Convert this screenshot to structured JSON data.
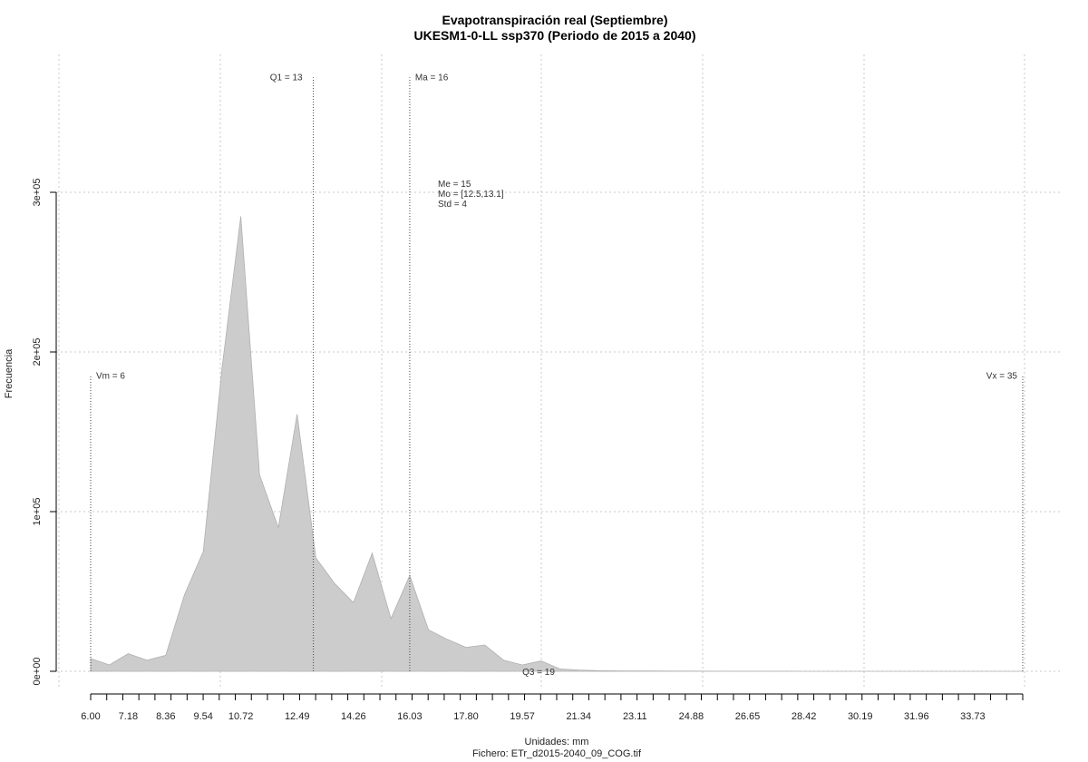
{
  "chart_data": {
    "type": "area",
    "title": "Evapotranspiración real (Septiembre)",
    "subtitle": "UKESM1-0-LL ssp370 (Periodo de 2015 a 2040)",
    "xlabel": "Unidades: mm",
    "caption": "Fichero: ETr_d2015-2040_09_COG.tif",
    "ylabel": "Frecuencia",
    "xlim": [
      6.0,
      35.3
    ],
    "ylim": [
      0,
      300000
    ],
    "x_tick_labels": [
      "6.00",
      "7.18",
      "8.36",
      "9.54",
      "10.72",
      "12.49",
      "14.26",
      "16.03",
      "17.80",
      "19.57",
      "21.34",
      "23.11",
      "24.88",
      "26.65",
      "28.42",
      "30.19",
      "31.96",
      "33.73"
    ],
    "y_ticks": [
      0,
      100000,
      200000,
      300000
    ],
    "y_tick_labels": [
      "0e+00",
      "1e+05",
      "2e+05",
      "3e+05"
    ],
    "grid": true,
    "series": [
      {
        "x": [
          6.0,
          6.59,
          7.18,
          7.77,
          8.36,
          8.95,
          9.54,
          10.13,
          10.72,
          11.31,
          11.9,
          12.49,
          13.08,
          13.67,
          14.26,
          14.85,
          15.44,
          16.03,
          16.62,
          17.21,
          17.8,
          18.39,
          18.98,
          19.57,
          20.16,
          20.75,
          21.34,
          21.93,
          22.52,
          23.11,
          23.7,
          24.29,
          24.88,
          25.47,
          26.06,
          26.65,
          27.24,
          27.83,
          28.42,
          29.01,
          29.6,
          30.19,
          30.78,
          31.37,
          31.96,
          32.55,
          33.14,
          33.73,
          34.32,
          34.91,
          35.3
        ],
        "values": [
          8000,
          4000,
          11000,
          7000,
          10000,
          48000,
          75000,
          190000,
          285000,
          123000,
          90000,
          161000,
          71000,
          55000,
          43000,
          74000,
          33000,
          60000,
          26000,
          20000,
          15000,
          16500,
          7000,
          4000,
          6500,
          1500,
          800,
          400,
          300,
          200,
          150,
          120,
          100,
          80,
          60,
          50,
          40,
          30,
          20,
          15,
          10,
          8,
          6,
          5,
          4,
          3,
          2,
          1,
          1,
          0,
          0
        ]
      }
    ],
    "markers": [
      {
        "label": "Vm = 6",
        "x": 6.0,
        "height": 185000
      },
      {
        "label": "Q1 = 13",
        "x": 13.0,
        "height": 372000
      },
      {
        "label": "Ma = 16",
        "x": 16.03,
        "height": 372000
      },
      {
        "label": "Vx = 35",
        "x": 35.3,
        "height": 185000
      }
    ],
    "q3_label": "Q3 = 19",
    "stats": [
      "Me = 15",
      "Mo = [12.5,13.1]",
      "Std = 4"
    ]
  }
}
